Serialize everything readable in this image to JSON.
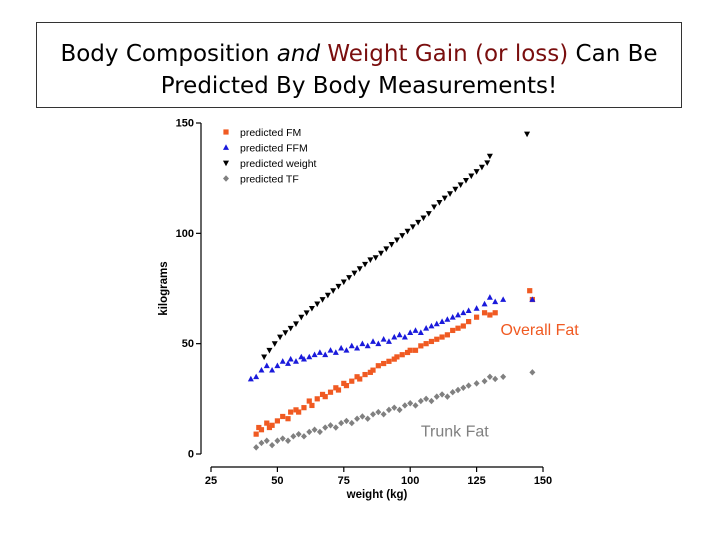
{
  "slide": {
    "title_part1": "Body Composition ",
    "title_italic": "and",
    "title_space": " ",
    "title_highlight": "Weight Gain (or loss)",
    "title_part2": " Can Be",
    "title_line2": "Predicted By Body Measurements!",
    "highlight_color": "#7a0e0e"
  },
  "chart_data": {
    "type": "scatter",
    "xlabel": "weight (kg)",
    "ylabel": "kilograms",
    "xlim": [
      25,
      150
    ],
    "ylim": [
      0,
      150
    ],
    "xticks": [
      25,
      50,
      75,
      100,
      125,
      150
    ],
    "yticks": [
      0,
      50,
      100,
      150
    ],
    "grid": false,
    "legend_position": "top-left",
    "series": [
      {
        "name": "predicted FM",
        "color": "#f05a22",
        "marker": "square",
        "points": [
          [
            42,
            9
          ],
          [
            43,
            12
          ],
          [
            44,
            11
          ],
          [
            46,
            14
          ],
          [
            47,
            12
          ],
          [
            48,
            13
          ],
          [
            50,
            15
          ],
          [
            52,
            17
          ],
          [
            54,
            16
          ],
          [
            55,
            19
          ],
          [
            57,
            20
          ],
          [
            58,
            19
          ],
          [
            60,
            21
          ],
          [
            62,
            24
          ],
          [
            63,
            22
          ],
          [
            65,
            25
          ],
          [
            67,
            27
          ],
          [
            68,
            26
          ],
          [
            70,
            28
          ],
          [
            72,
            30
          ],
          [
            73,
            29
          ],
          [
            75,
            32
          ],
          [
            76,
            31
          ],
          [
            78,
            33
          ],
          [
            80,
            35
          ],
          [
            81,
            34
          ],
          [
            83,
            36
          ],
          [
            85,
            37
          ],
          [
            86,
            38
          ],
          [
            88,
            40
          ],
          [
            90,
            41
          ],
          [
            92,
            42
          ],
          [
            94,
            43
          ],
          [
            95,
            44
          ],
          [
            97,
            45
          ],
          [
            99,
            46
          ],
          [
            100,
            47
          ],
          [
            102,
            47
          ],
          [
            104,
            49
          ],
          [
            106,
            50
          ],
          [
            108,
            51
          ],
          [
            110,
            52
          ],
          [
            112,
            53
          ],
          [
            114,
            54
          ],
          [
            116,
            56
          ],
          [
            118,
            57
          ],
          [
            120,
            58
          ],
          [
            122,
            60
          ],
          [
            125,
            62
          ],
          [
            128,
            64
          ],
          [
            130,
            63
          ],
          [
            132,
            64
          ],
          [
            145,
            74
          ],
          [
            146,
            70
          ]
        ]
      },
      {
        "name": "predicted FFM",
        "color": "#1a1adb",
        "marker": "triangle-up",
        "points": [
          [
            40,
            34
          ],
          [
            42,
            35
          ],
          [
            44,
            38
          ],
          [
            46,
            40
          ],
          [
            48,
            38
          ],
          [
            50,
            40
          ],
          [
            52,
            42
          ],
          [
            54,
            41
          ],
          [
            55,
            43
          ],
          [
            57,
            42
          ],
          [
            59,
            44
          ],
          [
            60,
            43
          ],
          [
            62,
            44
          ],
          [
            64,
            45
          ],
          [
            66,
            46
          ],
          [
            68,
            45
          ],
          [
            70,
            47
          ],
          [
            72,
            46
          ],
          [
            74,
            48
          ],
          [
            76,
            47
          ],
          [
            78,
            49
          ],
          [
            80,
            48
          ],
          [
            82,
            50
          ],
          [
            84,
            49
          ],
          [
            86,
            51
          ],
          [
            88,
            50
          ],
          [
            90,
            52
          ],
          [
            92,
            51
          ],
          [
            94,
            53
          ],
          [
            96,
            54
          ],
          [
            98,
            53
          ],
          [
            100,
            55
          ],
          [
            102,
            56
          ],
          [
            104,
            55
          ],
          [
            106,
            57
          ],
          [
            108,
            58
          ],
          [
            110,
            59
          ],
          [
            112,
            60
          ],
          [
            114,
            61
          ],
          [
            116,
            62
          ],
          [
            118,
            63
          ],
          [
            120,
            64
          ],
          [
            122,
            65
          ],
          [
            125,
            66
          ],
          [
            128,
            68
          ],
          [
            130,
            71
          ],
          [
            132,
            69
          ],
          [
            135,
            70
          ],
          [
            146,
            70
          ]
        ]
      },
      {
        "name": "predicted weight",
        "color": "#000000",
        "marker": "triangle-down",
        "points": [
          [
            45,
            44
          ],
          [
            47,
            47
          ],
          [
            49,
            50
          ],
          [
            51,
            53
          ],
          [
            53,
            55
          ],
          [
            55,
            57
          ],
          [
            57,
            59
          ],
          [
            59,
            62
          ],
          [
            61,
            64
          ],
          [
            63,
            66
          ],
          [
            65,
            68
          ],
          [
            67,
            70
          ],
          [
            69,
            72
          ],
          [
            71,
            74
          ],
          [
            73,
            76
          ],
          [
            75,
            78
          ],
          [
            77,
            80
          ],
          [
            79,
            82
          ],
          [
            81,
            84
          ],
          [
            83,
            86
          ],
          [
            85,
            88
          ],
          [
            87,
            89
          ],
          [
            89,
            91
          ],
          [
            91,
            93
          ],
          [
            93,
            95
          ],
          [
            95,
            97
          ],
          [
            97,
            99
          ],
          [
            99,
            101
          ],
          [
            101,
            103
          ],
          [
            103,
            105
          ],
          [
            105,
            107
          ],
          [
            107,
            109
          ],
          [
            109,
            112
          ],
          [
            111,
            114
          ],
          [
            113,
            116
          ],
          [
            115,
            118
          ],
          [
            117,
            120
          ],
          [
            119,
            122
          ],
          [
            121,
            124
          ],
          [
            123,
            126
          ],
          [
            125,
            128
          ],
          [
            127,
            130
          ],
          [
            129,
            132
          ],
          [
            130,
            135
          ],
          [
            144,
            145
          ]
        ]
      },
      {
        "name": "predicted TF",
        "color": "#808080",
        "marker": "diamond",
        "points": [
          [
            42,
            3
          ],
          [
            44,
            5
          ],
          [
            46,
            6
          ],
          [
            48,
            4
          ],
          [
            50,
            6
          ],
          [
            52,
            7
          ],
          [
            54,
            6
          ],
          [
            56,
            8
          ],
          [
            58,
            9
          ],
          [
            60,
            8
          ],
          [
            62,
            10
          ],
          [
            64,
            11
          ],
          [
            66,
            10
          ],
          [
            68,
            12
          ],
          [
            70,
            13
          ],
          [
            72,
            12
          ],
          [
            74,
            14
          ],
          [
            76,
            15
          ],
          [
            78,
            14
          ],
          [
            80,
            16
          ],
          [
            82,
            17
          ],
          [
            84,
            16
          ],
          [
            86,
            18
          ],
          [
            88,
            19
          ],
          [
            90,
            18
          ],
          [
            92,
            20
          ],
          [
            94,
            21
          ],
          [
            96,
            20
          ],
          [
            98,
            22
          ],
          [
            100,
            23
          ],
          [
            102,
            22
          ],
          [
            104,
            24
          ],
          [
            106,
            25
          ],
          [
            108,
            24
          ],
          [
            110,
            26
          ],
          [
            112,
            27
          ],
          [
            114,
            26
          ],
          [
            116,
            28
          ],
          [
            118,
            29
          ],
          [
            120,
            30
          ],
          [
            122,
            31
          ],
          [
            125,
            32
          ],
          [
            128,
            33
          ],
          [
            130,
            35
          ],
          [
            132,
            34
          ],
          [
            135,
            35
          ],
          [
            146,
            37
          ]
        ]
      }
    ],
    "annotations": [
      {
        "text": "Overall Fat",
        "color": "#f05a22",
        "x": 134,
        "y": 54
      },
      {
        "text": "Trunk Fat",
        "color": "#808080",
        "x": 104,
        "y": 8
      }
    ]
  }
}
